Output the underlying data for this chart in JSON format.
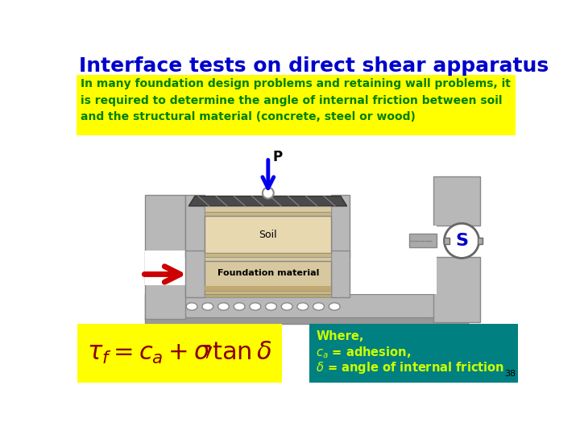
{
  "title": "Interface tests on direct shear apparatus",
  "title_color": "#0000CC",
  "title_fontsize": 18,
  "subtitle_text": "In many foundation design problems and retaining wall problems, it\nis required to determine the angle of internal friction between soil\nand the structural material (concrete, steel or wood)",
  "subtitle_bg": "#FFFF00",
  "subtitle_color": "#008000",
  "where_bg": "#008080",
  "where_text_color": "#CCFF00",
  "formula_bg": "#FFFF00",
  "page_number": "38",
  "bg_color": "#FFFFFF"
}
